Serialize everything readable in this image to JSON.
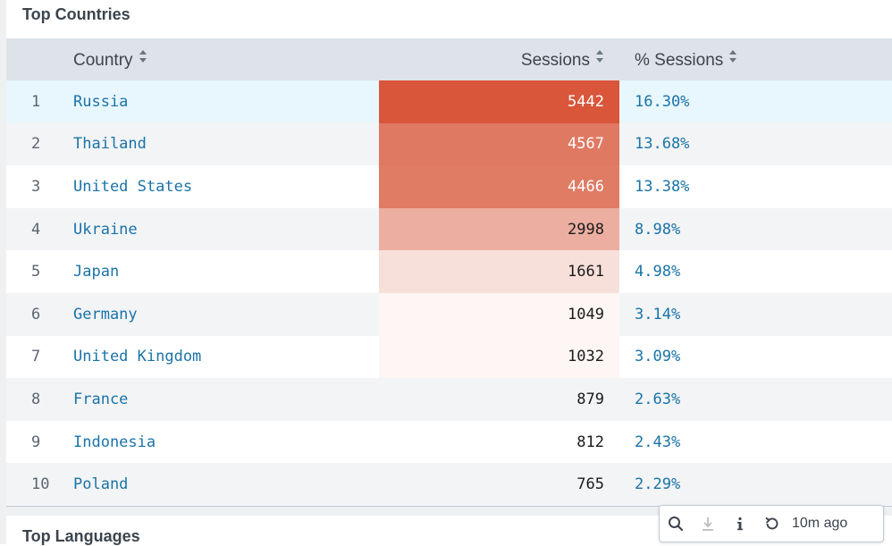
{
  "panel": {
    "title": "Top Countries"
  },
  "table": {
    "columns": {
      "country": "Country",
      "sessions": "Sessions",
      "pct": "% Sessions"
    },
    "rows": [
      {
        "rank": "1",
        "country": "Russia",
        "sessions": "5442",
        "pct": "16.30%",
        "heat": "#d9563a"
      },
      {
        "rank": "2",
        "country": "Thailand",
        "sessions": "4567",
        "pct": "13.68%",
        "heat": "#e07962"
      },
      {
        "rank": "3",
        "country": "United States",
        "sessions": "4466",
        "pct": "13.38%",
        "heat": "#e07b64"
      },
      {
        "rank": "4",
        "country": "Ukraine",
        "sessions": "2998",
        "pct": "8.98%",
        "heat": "#ecaea0"
      },
      {
        "rank": "5",
        "country": "Japan",
        "sessions": "1661",
        "pct": "4.98%",
        "heat": "#f7dfda"
      },
      {
        "rank": "6",
        "country": "Germany",
        "sessions": "1049",
        "pct": "3.14%",
        "heat": "#fdf6f4"
      },
      {
        "rank": "7",
        "country": "United Kingdom",
        "sessions": "1032",
        "pct": "3.09%",
        "heat": "#fdf6f4"
      },
      {
        "rank": "8",
        "country": "France",
        "sessions": "879",
        "pct": "2.63%",
        "heat": ""
      },
      {
        "rank": "9",
        "country": "Indonesia",
        "sessions": "812",
        "pct": "2.43%",
        "heat": ""
      },
      {
        "rank": "10",
        "country": "Poland",
        "sessions": "765",
        "pct": "2.29%",
        "heat": ""
      }
    ]
  },
  "toolbar": {
    "time": "10m ago",
    "icons": [
      "search-icon",
      "download-icon",
      "info-icon",
      "refresh-icon"
    ]
  },
  "next_panel": {
    "title": "Top Languages"
  }
}
